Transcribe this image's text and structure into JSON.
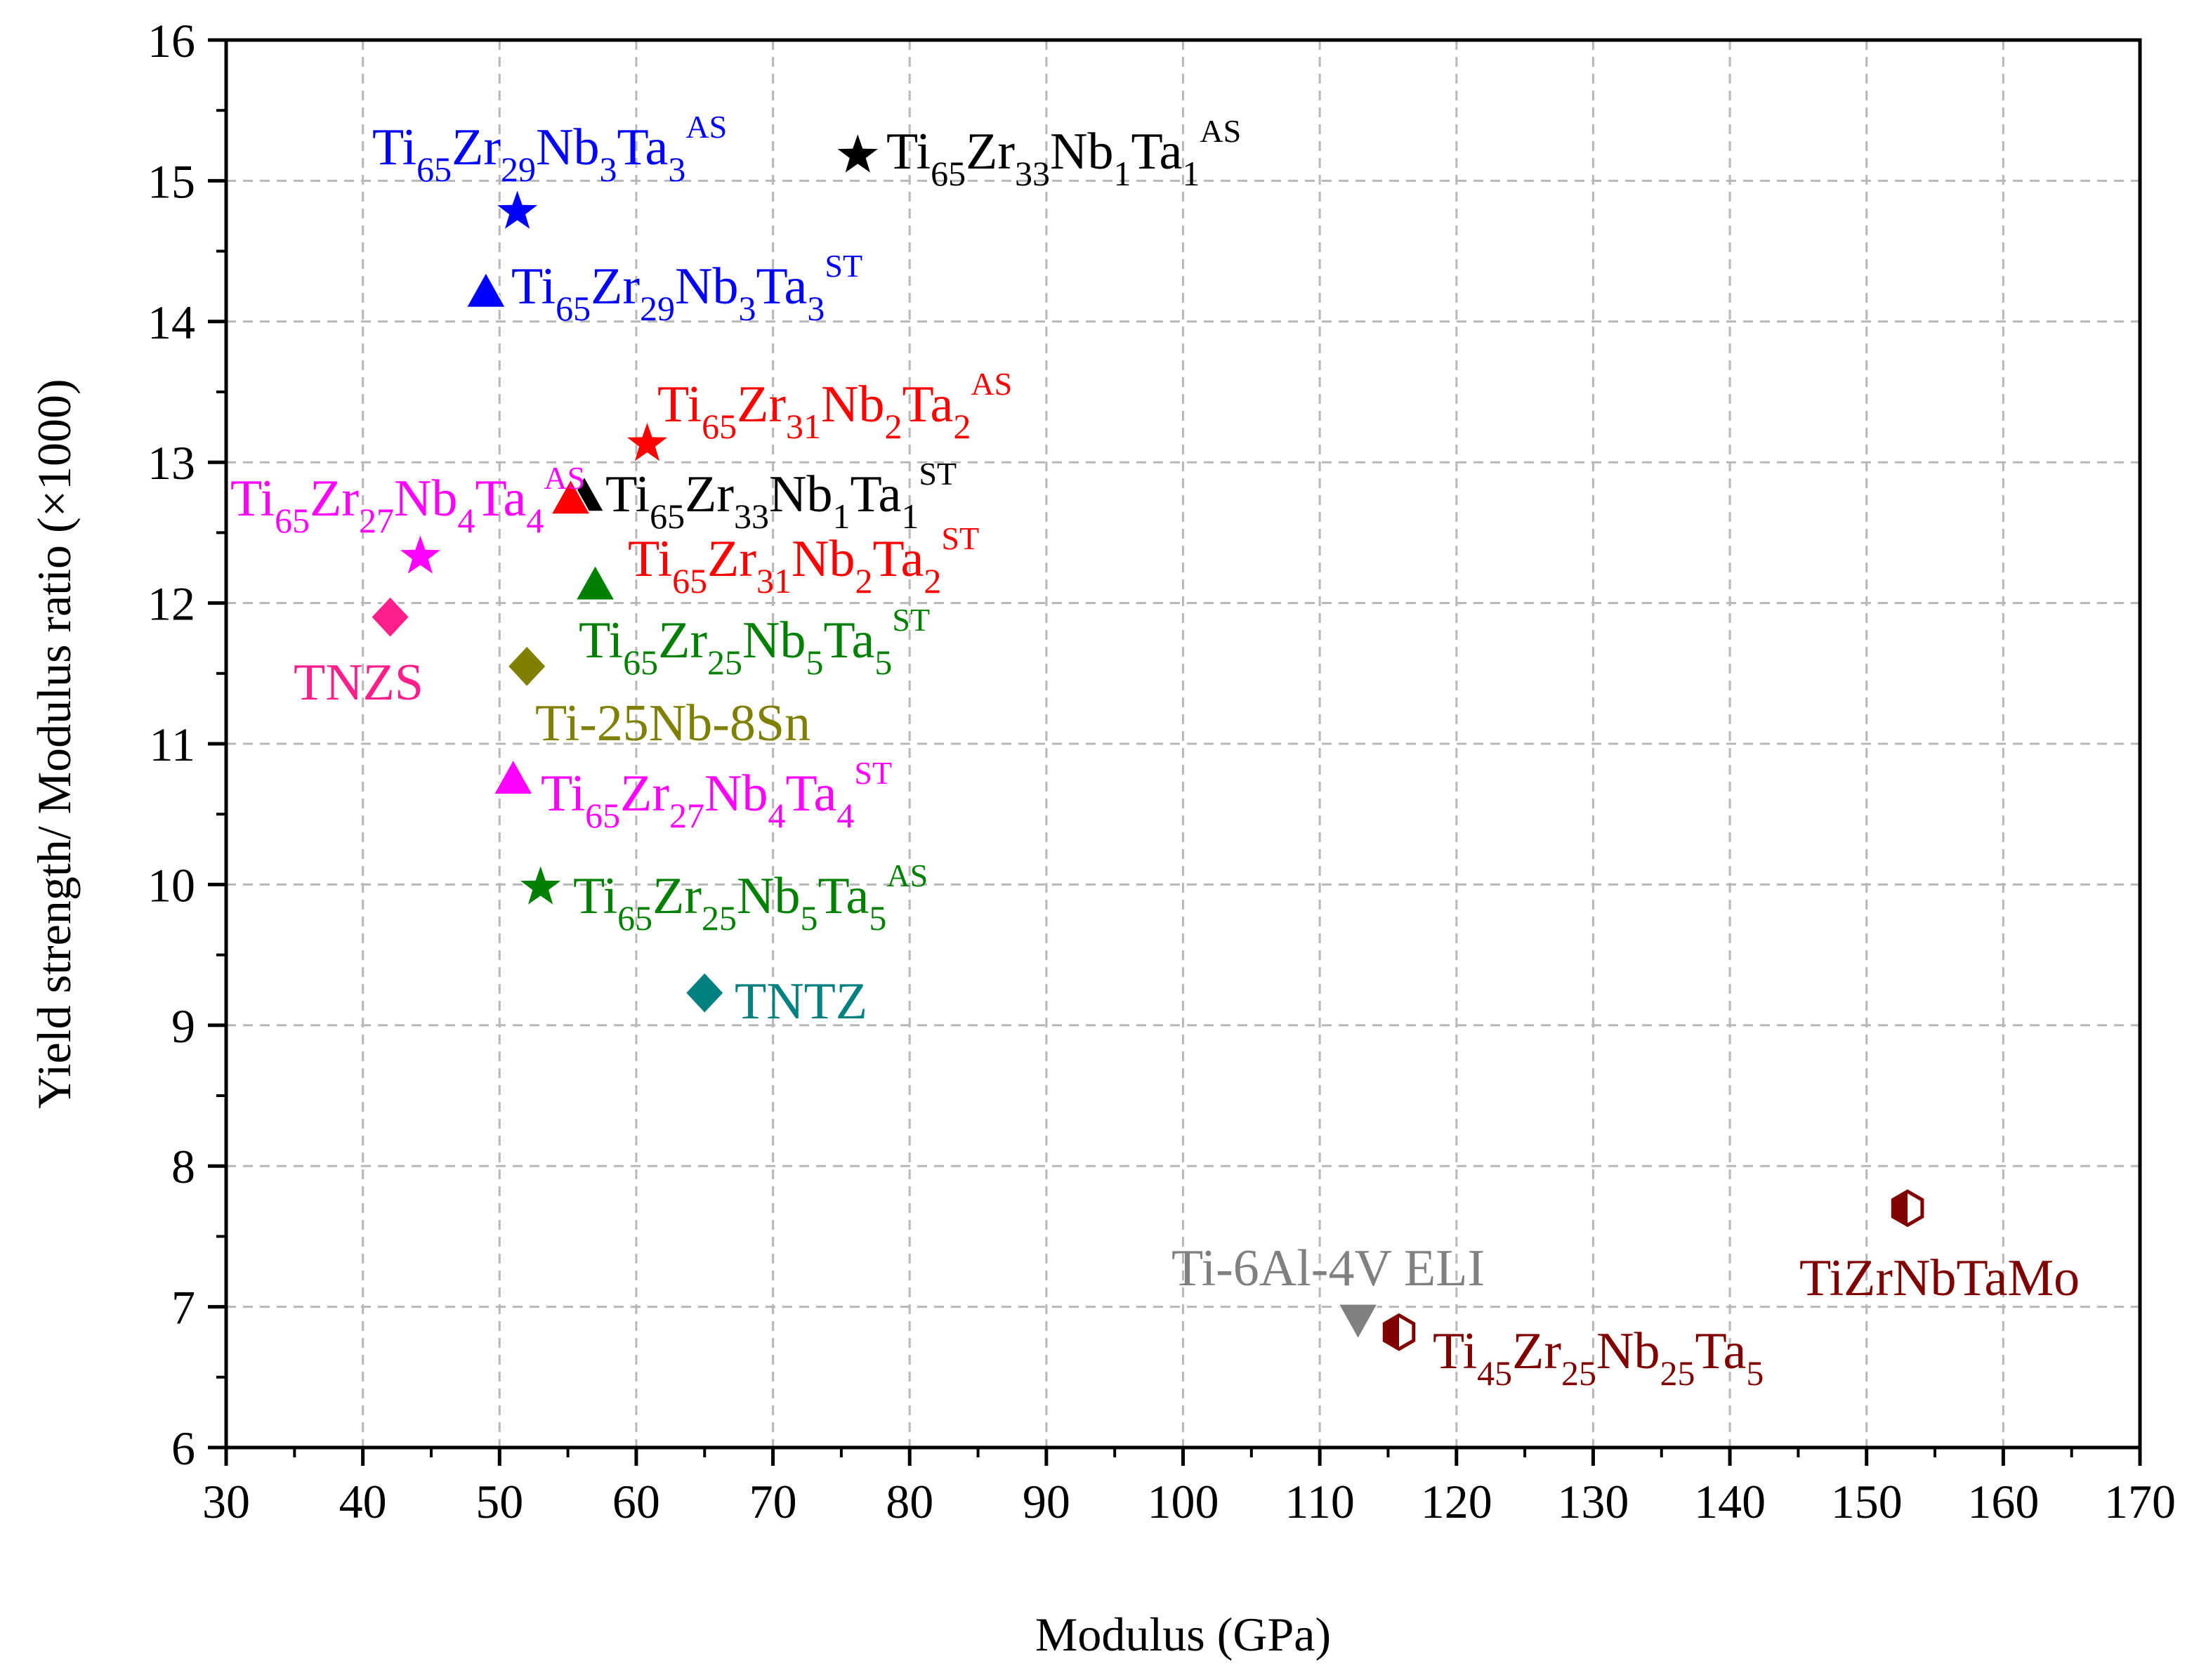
{
  "chart_data": {
    "type": "scatter",
    "xlabel": "Modulus (GPa)",
    "ylabel": "Yield strength/ Modulus ratio (×1000)",
    "xlim": [
      30,
      170
    ],
    "ylim": [
      6,
      16
    ],
    "xticks": [
      "30",
      "40",
      "50",
      "60",
      "70",
      "80",
      "90",
      "100",
      "110",
      "120",
      "130",
      "140",
      "150",
      "160",
      "170"
    ],
    "yticks": [
      "6",
      "7",
      "8",
      "9",
      "10",
      "11",
      "12",
      "13",
      "14",
      "15",
      "16"
    ],
    "grid": true,
    "points": [
      {
        "id": "ti65zr29nb3ta3-as",
        "x": 51.3,
        "y": 14.78,
        "marker": "star",
        "color": "#0000ff",
        "label": [
          {
            "t": "Ti"
          },
          {
            "t": "65",
            "s": "sub"
          },
          {
            "t": "Zr"
          },
          {
            "t": "29",
            "s": "sub"
          },
          {
            "t": "Nb"
          },
          {
            "t": "3",
            "s": "sub"
          },
          {
            "t": "Ta"
          },
          {
            "t": "3",
            "s": "sub"
          },
          {
            "t": "AS",
            "s": "sup"
          }
        ]
      },
      {
        "id": "ti65zr29nb3ta3-st",
        "x": 49.0,
        "y": 14.2,
        "marker": "triangle",
        "color": "#0000ff",
        "label": [
          {
            "t": "Ti"
          },
          {
            "t": "65",
            "s": "sub"
          },
          {
            "t": "Zr"
          },
          {
            "t": "29",
            "s": "sub"
          },
          {
            "t": "Nb"
          },
          {
            "t": "3",
            "s": "sub"
          },
          {
            "t": "Ta"
          },
          {
            "t": "3",
            "s": "sub"
          },
          {
            "t": "ST",
            "s": "sup"
          }
        ]
      },
      {
        "id": "ti65zr33nb1ta1-as",
        "x": 76.2,
        "y": 15.18,
        "marker": "star",
        "color": "#000000",
        "label": [
          {
            "t": "Ti"
          },
          {
            "t": "65",
            "s": "sub"
          },
          {
            "t": "Zr"
          },
          {
            "t": "33",
            "s": "sub"
          },
          {
            "t": "Nb"
          },
          {
            "t": "1",
            "s": "sub"
          },
          {
            "t": "Ta"
          },
          {
            "t": "1",
            "s": "sub"
          },
          {
            "t": "AS",
            "s": "sup"
          }
        ]
      },
      {
        "id": "ti65zr33nb1ta1-st",
        "x": 56.2,
        "y": 12.75,
        "marker": "triangle",
        "color": "#000000",
        "label": [
          {
            "t": "Ti"
          },
          {
            "t": "65",
            "s": "sub"
          },
          {
            "t": "Zr"
          },
          {
            "t": "33",
            "s": "sub"
          },
          {
            "t": "Nb"
          },
          {
            "t": "1",
            "s": "sub"
          },
          {
            "t": "Ta"
          },
          {
            "t": "1",
            "s": "sub"
          },
          {
            "t": "ST",
            "s": "sup"
          }
        ]
      },
      {
        "id": "ti65zr31nb2ta2-as",
        "x": 60.8,
        "y": 13.13,
        "marker": "star",
        "color": "#ff0000",
        "label": [
          {
            "t": "Ti"
          },
          {
            "t": "65",
            "s": "sub"
          },
          {
            "t": "Zr"
          },
          {
            "t": "31",
            "s": "sub"
          },
          {
            "t": "Nb"
          },
          {
            "t": "2",
            "s": "sub"
          },
          {
            "t": "Ta"
          },
          {
            "t": "2",
            "s": "sub"
          },
          {
            "t": "AS",
            "s": "sup"
          }
        ]
      },
      {
        "id": "ti65zr31nb2ta2-st",
        "x": 55.2,
        "y": 12.73,
        "marker": "triangle",
        "color": "#ff0000",
        "label": [
          {
            "t": "Ti"
          },
          {
            "t": "65",
            "s": "sub"
          },
          {
            "t": "Zr"
          },
          {
            "t": "31",
            "s": "sub"
          },
          {
            "t": "Nb"
          },
          {
            "t": "2",
            "s": "sub"
          },
          {
            "t": "Ta"
          },
          {
            "t": "2",
            "s": "sub"
          },
          {
            "t": "ST",
            "s": "sup"
          }
        ]
      },
      {
        "id": "ti65zr27nb4ta4-as",
        "x": 44.2,
        "y": 12.33,
        "marker": "star",
        "color": "#ff00ff",
        "label": [
          {
            "t": "Ti"
          },
          {
            "t": "65",
            "s": "sub"
          },
          {
            "t": "Zr"
          },
          {
            "t": "27",
            "s": "sub"
          },
          {
            "t": "Nb"
          },
          {
            "t": "4",
            "s": "sub"
          },
          {
            "t": "Ta"
          },
          {
            "t": "4",
            "s": "sub"
          },
          {
            "t": "AS",
            "s": "sup"
          }
        ]
      },
      {
        "id": "ti65zr27nb4ta4-st",
        "x": 51.0,
        "y": 10.74,
        "marker": "triangle",
        "color": "#ff00ff",
        "label": [
          {
            "t": "Ti"
          },
          {
            "t": "65",
            "s": "sub"
          },
          {
            "t": "Zr"
          },
          {
            "t": "27",
            "s": "sub"
          },
          {
            "t": "Nb"
          },
          {
            "t": "4",
            "s": "sub"
          },
          {
            "t": "Ta"
          },
          {
            "t": "4",
            "s": "sub"
          },
          {
            "t": "ST",
            "s": "sup"
          }
        ]
      },
      {
        "id": "ti65zr25nb5ta5-st",
        "x": 57.0,
        "y": 12.12,
        "marker": "triangle",
        "color": "#008000",
        "label": [
          {
            "t": "Ti"
          },
          {
            "t": "65",
            "s": "sub"
          },
          {
            "t": "Zr"
          },
          {
            "t": "25",
            "s": "sub"
          },
          {
            "t": "Nb"
          },
          {
            "t": "5",
            "s": "sub"
          },
          {
            "t": "Ta"
          },
          {
            "t": "5",
            "s": "sub"
          },
          {
            "t": "ST",
            "s": "sup"
          }
        ]
      },
      {
        "id": "ti65zr25nb5ta5-as",
        "x": 53.0,
        "y": 9.98,
        "marker": "star",
        "color": "#008000",
        "label": [
          {
            "t": "Ti"
          },
          {
            "t": "65",
            "s": "sub"
          },
          {
            "t": "Zr"
          },
          {
            "t": "25",
            "s": "sub"
          },
          {
            "t": "Nb"
          },
          {
            "t": "5",
            "s": "sub"
          },
          {
            "t": "Ta"
          },
          {
            "t": "5",
            "s": "sub"
          },
          {
            "t": "AS",
            "s": "sup"
          }
        ]
      },
      {
        "id": "tnzs",
        "x": 42.0,
        "y": 11.9,
        "marker": "diamond",
        "color": "#ff1f8a",
        "label": [
          {
            "t": "TNZS"
          }
        ]
      },
      {
        "id": "ti-25nb-8sn",
        "x": 52.0,
        "y": 11.55,
        "marker": "diamond",
        "color": "#808000",
        "label": [
          {
            "t": "Ti-25Nb-8Sn"
          }
        ]
      },
      {
        "id": "tntz",
        "x": 65.0,
        "y": 9.23,
        "marker": "diamond",
        "color": "#008080",
        "label": [
          {
            "t": "TNTZ"
          }
        ]
      },
      {
        "id": "ti-6al-4v-eli",
        "x": 112.8,
        "y": 6.92,
        "marker": "triangle-down",
        "color": "#808080",
        "label": [
          {
            "t": "Ti-6Al-4V ELI"
          }
        ]
      },
      {
        "id": "ti45zr25nb25ta5",
        "x": 115.8,
        "y": 6.82,
        "marker": "hexagon",
        "color": "#800000",
        "label": [
          {
            "t": "Ti"
          },
          {
            "t": "45",
            "s": "sub"
          },
          {
            "t": "Zr"
          },
          {
            "t": "25",
            "s": "sub"
          },
          {
            "t": "Nb"
          },
          {
            "t": "25",
            "s": "sub"
          },
          {
            "t": "Ta"
          },
          {
            "t": "5",
            "s": "sub"
          }
        ]
      },
      {
        "id": "tizrnbtamo",
        "x": 153.0,
        "y": 7.7,
        "marker": "hexagon",
        "color": "#800000",
        "label": [
          {
            "t": "TiZrNbTaMo"
          }
        ]
      }
    ]
  }
}
